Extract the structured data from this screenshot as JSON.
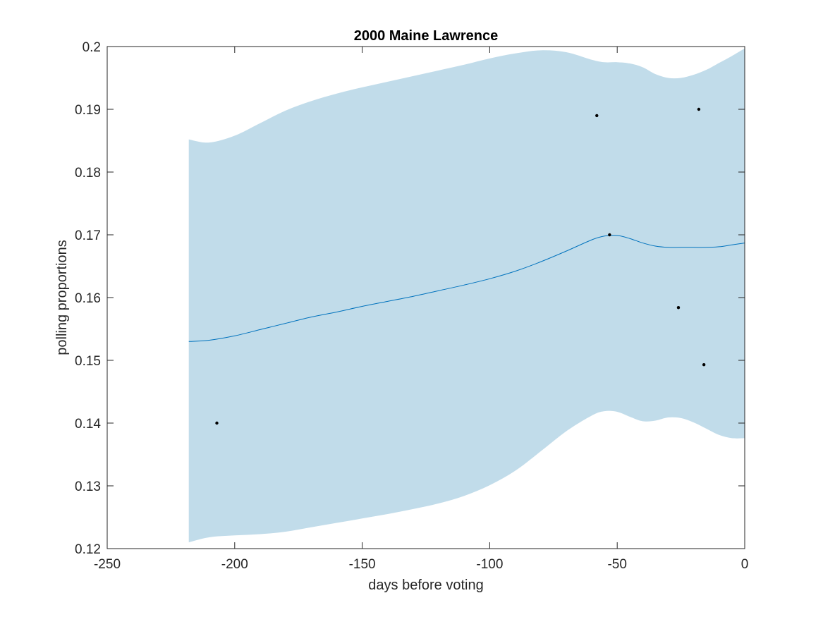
{
  "chart_data": {
    "type": "line",
    "title": "2000 Maine Lawrence",
    "xlabel": "days before voting",
    "ylabel": "polling proportions",
    "xlim": [
      -250,
      0
    ],
    "ylim": [
      0.12,
      0.2
    ],
    "xticks": [
      -250,
      -200,
      -150,
      -100,
      -50,
      0
    ],
    "xtick_labels": [
      "-250",
      "-200",
      "-150",
      "-100",
      "-50",
      "0"
    ],
    "yticks": [
      0.12,
      0.13,
      0.14,
      0.15,
      0.16,
      0.17,
      0.18,
      0.19,
      0.2
    ],
    "ytick_labels": [
      "0.12",
      "0.13",
      "0.14",
      "0.15",
      "0.16",
      "0.17",
      "0.18",
      "0.19",
      "0.2"
    ],
    "grid": false,
    "colors": {
      "band": "#c1dcea",
      "line": "#0072bd",
      "points": "#000000",
      "axes": "#262626"
    },
    "band": {
      "x": [
        -218,
        -210,
        -200,
        -190,
        -180,
        -170,
        -160,
        -150,
        -140,
        -130,
        -120,
        -110,
        -100,
        -90,
        -80,
        -70,
        -60,
        -55,
        -50,
        -45,
        -40,
        -35,
        -30,
        -25,
        -20,
        -15,
        -10,
        -5,
        0
      ],
      "upper": [
        0.1852,
        0.1847,
        0.1858,
        0.1878,
        0.1898,
        0.1913,
        0.1925,
        0.1935,
        0.1944,
        0.1953,
        0.1962,
        0.1971,
        0.1981,
        0.1989,
        0.1994,
        0.1991,
        0.1979,
        0.1975,
        0.1975,
        0.1973,
        0.1967,
        0.1956,
        0.195,
        0.195,
        0.1955,
        0.1963,
        0.1974,
        0.1985,
        0.1997
      ],
      "lower": [
        0.121,
        0.1218,
        0.1221,
        0.1223,
        0.1227,
        0.1234,
        0.1241,
        0.1248,
        0.1255,
        0.1263,
        0.1272,
        0.1284,
        0.1301,
        0.1324,
        0.1355,
        0.1387,
        0.1412,
        0.1419,
        0.1418,
        0.141,
        0.1403,
        0.1404,
        0.1409,
        0.1408,
        0.1401,
        0.1391,
        0.1381,
        0.1376,
        0.1376
      ]
    },
    "series": [
      {
        "x": [
          -218,
          -210,
          -200,
          -190,
          -180,
          -170,
          -160,
          -150,
          -140,
          -130,
          -120,
          -110,
          -100,
          -90,
          -80,
          -70,
          -60,
          -55,
          -50,
          -45,
          -40,
          -35,
          -30,
          -25,
          -20,
          -15,
          -10,
          -5,
          0
        ],
        "y": [
          0.153,
          0.1532,
          0.1539,
          0.1549,
          0.1559,
          0.1569,
          0.1577,
          0.1586,
          0.1594,
          0.1602,
          0.1611,
          0.162,
          0.163,
          0.1642,
          0.1657,
          0.1674,
          0.1692,
          0.1698,
          0.1699,
          0.1694,
          0.1687,
          0.1682,
          0.168,
          0.168,
          0.168,
          0.168,
          0.1681,
          0.1684,
          0.1687
        ]
      }
    ],
    "points": [
      {
        "x": -207,
        "y": 0.14
      },
      {
        "x": -58,
        "y": 0.189
      },
      {
        "x": -53,
        "y": 0.17
      },
      {
        "x": -26,
        "y": 0.1584
      },
      {
        "x": -18,
        "y": 0.19
      },
      {
        "x": -16,
        "y": 0.1493
      }
    ]
  }
}
